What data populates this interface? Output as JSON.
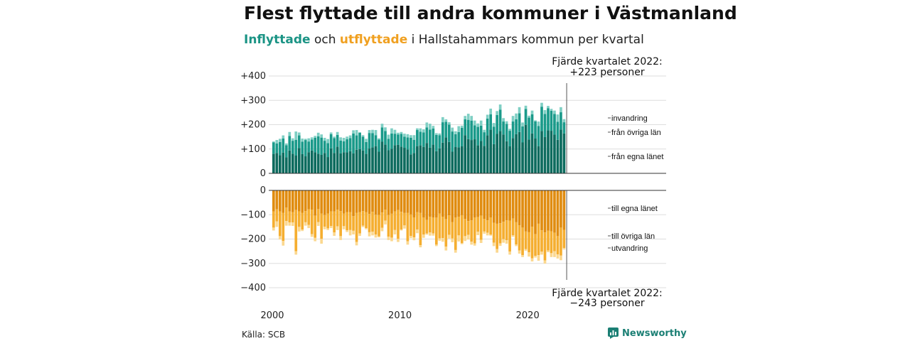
{
  "header": {
    "title": "Flest flyttade till andra kommuner i Västmanland",
    "subtitle_in": "Inflyttade",
    "subtitle_mid": " och ",
    "subtitle_out": "utflyttade",
    "subtitle_rest": " i Hallstahammars kommun per kvartal"
  },
  "footer": {
    "source": "Källa: SCB",
    "brand": "Newsworthy"
  },
  "colors": {
    "in_own_county": "#0d6b5e",
    "in_other_counties": "#1a9a8a",
    "in_immigration": "#7fcfc4",
    "out_own_county": "#e08c10",
    "out_other_counties": "#f5ae30",
    "out_emigration": "#fbd890",
    "axis": "#333333",
    "grid": "#dddddd"
  },
  "chart_data": {
    "type": "bar",
    "stacked": true,
    "x_label": "",
    "x_ticks": [
      "2000",
      "2010",
      "2020"
    ],
    "x_start": "2000 Q1",
    "x_end": "2022 Q4",
    "top_panel": {
      "ylim": [
        0,
        400
      ],
      "ticks": [
        "0",
        "+100",
        "+200",
        "+300",
        "+400"
      ],
      "series": [
        {
          "name": "från egna länet",
          "values": [
            80,
            84,
            75,
            85,
            66,
            94,
            81,
            73,
            104,
            79,
            70,
            87,
            94,
            87,
            81,
            76,
            84,
            67,
            103,
            84,
            110,
            82,
            87,
            86,
            91,
            82,
            97,
            100,
            94,
            80,
            102,
            107,
            112,
            89,
            130,
            118,
            95,
            101,
            116,
            117,
            110,
            105,
            98,
            78,
            84,
            112,
            115,
            109,
            125,
            106,
            118,
            91,
            103,
            126,
            148,
            129,
            89,
            108,
            107,
            111,
            157,
            141,
            137,
            140,
            115,
            133,
            113,
            156,
            180,
            120,
            162,
            174,
            160,
            132,
            111,
            145,
            161,
            170,
            127,
            199,
            139,
            164,
            143,
            112,
            174,
            149,
            177,
            175,
            159,
            138,
            180,
            164
          ]
        },
        {
          "name": "från övriga län",
          "values": [
            47,
            39,
            54,
            58,
            50,
            60,
            53,
            65,
            52,
            51,
            67,
            44,
            45,
            59,
            71,
            71,
            50,
            57,
            58,
            61,
            48,
            53,
            45,
            54,
            54,
            82,
            59,
            67,
            57,
            49,
            64,
            58,
            45,
            50,
            59,
            56,
            47,
            63,
            47,
            43,
            52,
            46,
            50,
            68,
            54,
            66,
            56,
            59,
            64,
            74,
            66,
            67,
            54,
            84,
            64,
            71,
            83,
            53,
            63,
            76,
            65,
            79,
            80,
            57,
            76,
            63,
            56,
            69,
            63,
            72,
            78,
            88,
            53,
            71,
            64,
            68,
            61,
            77,
            66,
            66,
            90,
            79,
            71,
            83,
            100,
            95,
            91,
            82,
            85,
            74,
            71,
            46
          ]
        },
        {
          "name": "invandring",
          "values": [
            4,
            14,
            13,
            13,
            7,
            16,
            10,
            34,
            12,
            13,
            5,
            13,
            9,
            8,
            15,
            13,
            12,
            17,
            7,
            6,
            12,
            13,
            14,
            11,
            11,
            13,
            22,
            2,
            6,
            13,
            12,
            14,
            21,
            5,
            15,
            15,
            17,
            21,
            16,
            7,
            8,
            12,
            13,
            11,
            19,
            7,
            14,
            13,
            20,
            24,
            11,
            7,
            7,
            21,
            10,
            10,
            16,
            12,
            24,
            9,
            14,
            25,
            19,
            20,
            14,
            21,
            10,
            16,
            23,
            15,
            16,
            21,
            14,
            11,
            8,
            23,
            24,
            25,
            16,
            13,
            8,
            15,
            4,
            18,
            16,
            16,
            9,
            8,
            14,
            30,
            21,
            13
          ]
        }
      ]
    },
    "bottom_panel": {
      "ylim": [
        -400,
        0
      ],
      "ticks": [
        "0",
        "−100",
        "−200",
        "−300",
        "−400"
      ],
      "series": [
        {
          "name": "till egna länet",
          "values": [
            -87,
            -78,
            -86,
            -92,
            -71,
            -87,
            -90,
            -81,
            -86,
            -92,
            -85,
            -78,
            -79,
            -104,
            -77,
            -95,
            -101,
            -95,
            -86,
            -87,
            -79,
            -85,
            -95,
            -89,
            -89,
            -106,
            -92,
            -89,
            -85,
            -89,
            -97,
            -88,
            -100,
            -101,
            -91,
            -79,
            -101,
            -96,
            -86,
            -81,
            -88,
            -93,
            -92,
            -99,
            -111,
            -90,
            -93,
            -111,
            -121,
            -109,
            -111,
            -112,
            -95,
            -108,
            -118,
            -103,
            -130,
            -111,
            -109,
            -102,
            -117,
            -126,
            -123,
            -111,
            -110,
            -104,
            -117,
            -123,
            -111,
            -133,
            -137,
            -135,
            -129,
            -123,
            -124,
            -116,
            -131,
            -144,
            -153,
            -169,
            -172,
            -149,
            -180,
            -137,
            -164,
            -173,
            -166,
            -168,
            -174,
            -188,
            -153,
            -162
          ]
        },
        {
          "name": "till övriga län",
          "values": [
            -66,
            -49,
            -102,
            -116,
            -55,
            -45,
            -42,
            -169,
            -64,
            -69,
            -46,
            -64,
            -101,
            -91,
            -53,
            -104,
            -48,
            -61,
            -60,
            -86,
            -69,
            -103,
            -52,
            -75,
            -74,
            -60,
            -120,
            -88,
            -60,
            -66,
            -75,
            -82,
            -81,
            -88,
            -63,
            -45,
            -89,
            -98,
            -77,
            -118,
            -73,
            -51,
            -117,
            -88,
            -82,
            -71,
            -132,
            -70,
            -56,
            -64,
            -66,
            -111,
            -102,
            -88,
            -113,
            -80,
            -68,
            -134,
            -76,
            -115,
            -71,
            -57,
            -88,
            -107,
            -60,
            -99,
            -52,
            -51,
            -71,
            -82,
            -104,
            -83,
            -71,
            -82,
            -127,
            -68,
            -91,
            -103,
            -113,
            -72,
            -82,
            -130,
            -89,
            -129,
            -88,
            -115,
            -81,
            -90,
            -76,
            -75,
            -115,
            -75
          ]
        },
        {
          "name": "utvandring",
          "values": [
            -12,
            -23,
            -14,
            -19,
            -19,
            -13,
            -14,
            -14,
            -19,
            -6,
            -14,
            -13,
            -11,
            -14,
            -16,
            -20,
            -11,
            -7,
            -9,
            -14,
            -15,
            -16,
            -13,
            -7,
            -22,
            -15,
            -14,
            -10,
            -6,
            -5,
            -17,
            -15,
            -13,
            -4,
            -14,
            -16,
            -14,
            -15,
            -18,
            -13,
            -4,
            -13,
            -14,
            -9,
            -12,
            -15,
            -9,
            -14,
            -5,
            -13,
            -9,
            -6,
            -10,
            -15,
            -16,
            -15,
            -15,
            -11,
            -25,
            -4,
            -20,
            -19,
            -12,
            -9,
            -14,
            -13,
            -9,
            -11,
            -4,
            -14,
            -15,
            -10,
            -15,
            -14,
            -13,
            -7,
            -7,
            -13,
            -8,
            -7,
            -18,
            -13,
            -7,
            -23,
            -12,
            -13,
            -7,
            -16,
            -24,
            -17,
            -19,
            -6
          ]
        }
      ]
    },
    "annotations": {
      "top_line1": "Fjärde kvartalet 2022:",
      "top_line2": "+223 personer",
      "bottom_line1": "Fjärde kvartalet 2022:",
      "bottom_line2": "−243 personer"
    },
    "series_labels": {
      "in_immigration": "invandring",
      "in_other": "från övriga län",
      "in_own": "från egna länet",
      "out_own": "till egna länet",
      "out_other": "till övriga län",
      "out_emigration": "utvandring"
    }
  }
}
